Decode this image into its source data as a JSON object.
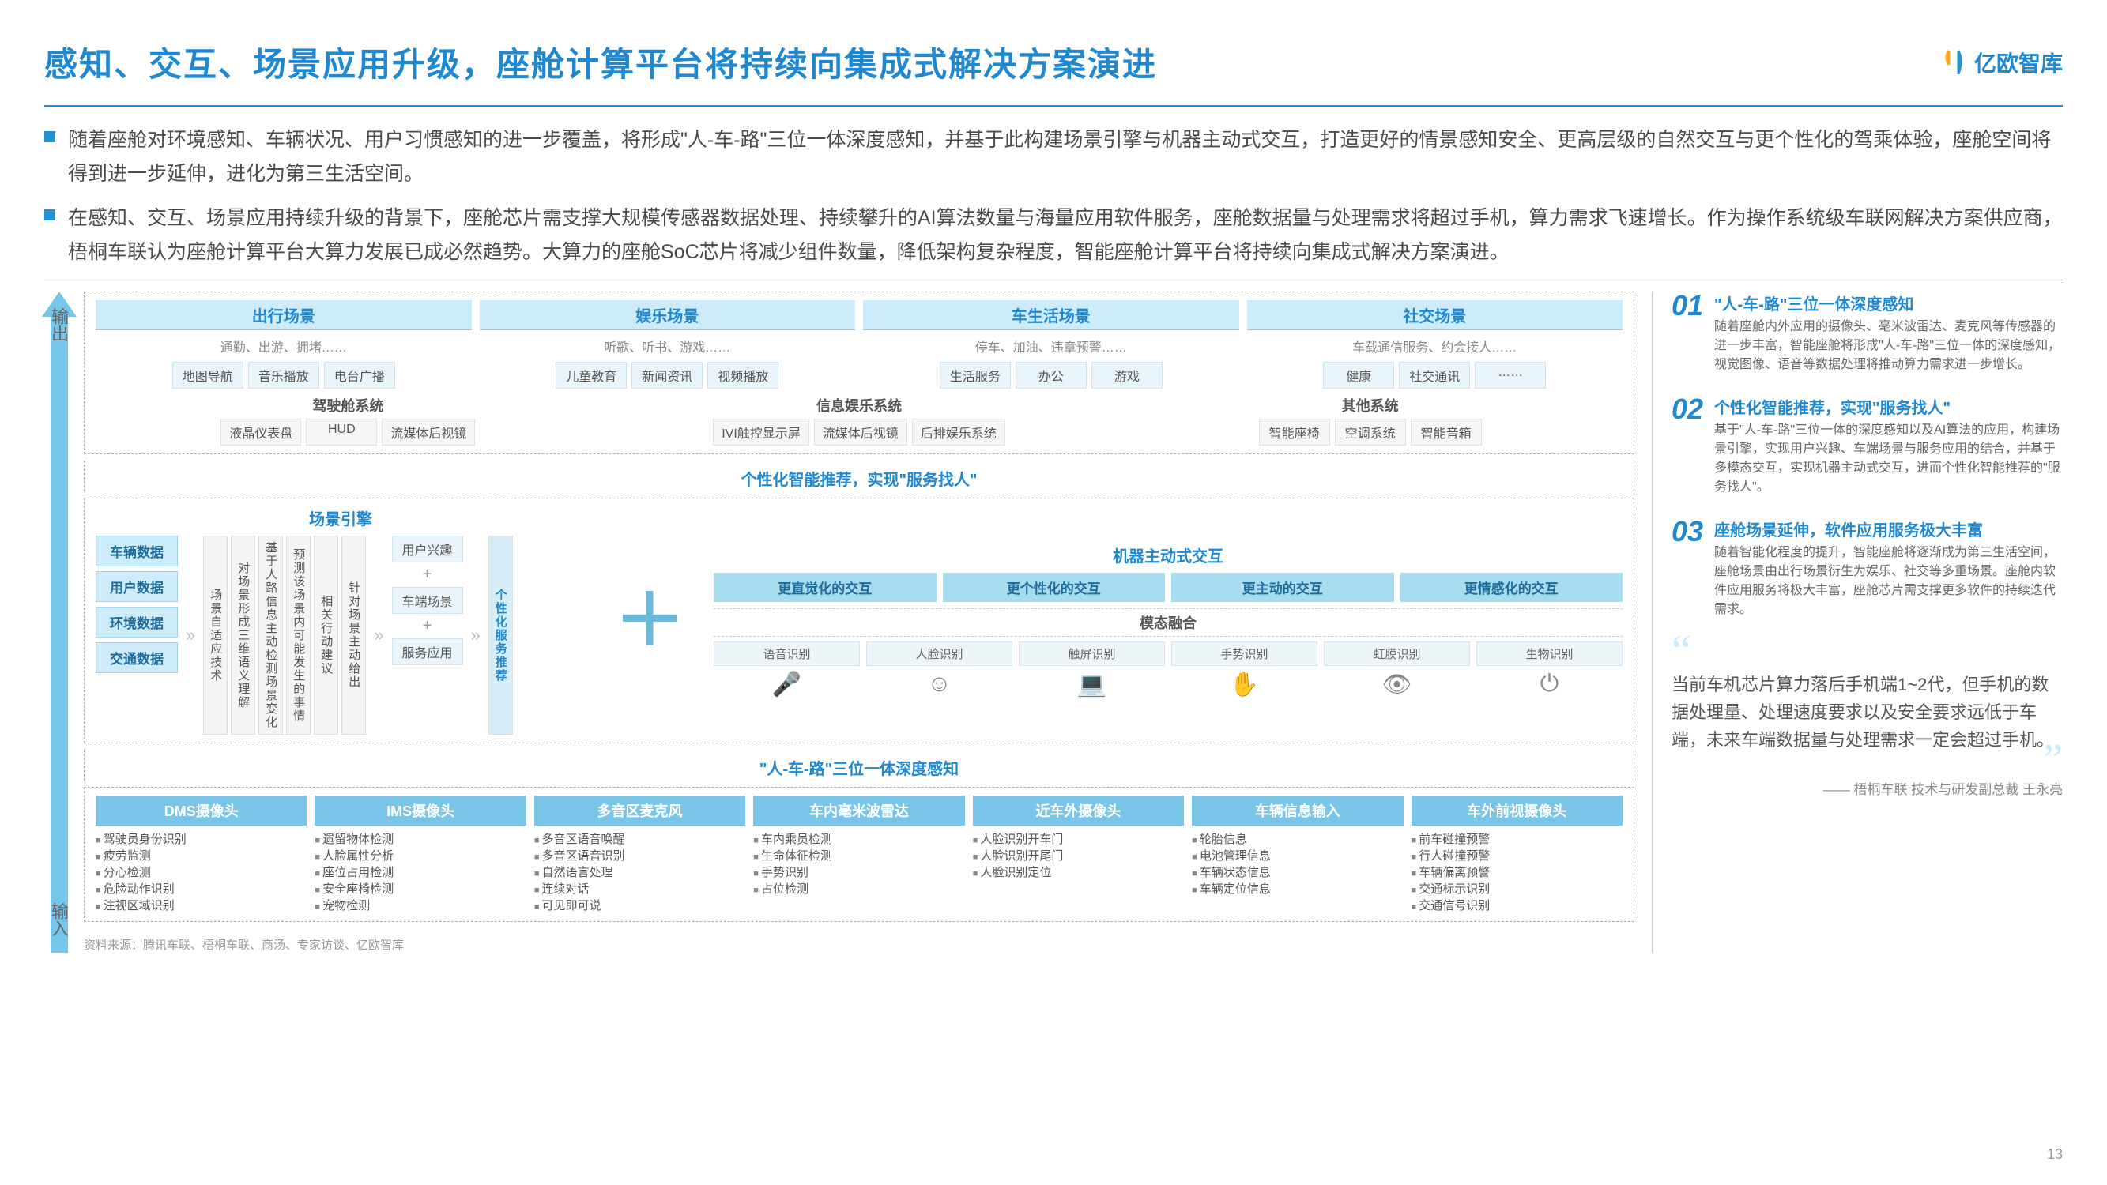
{
  "header": {
    "title": "感知、交互、场景应用升级，座舱计算平台将持续向集成式解决方案演进",
    "logo_text": "亿欧智库"
  },
  "bullets": [
    "随着座舱对环境感知、车辆状况、用户习惯感知的进一步覆盖，将形成\"人-车-路\"三位一体深度感知，并基于此构建场景引擎与机器主动式交互，打造更好的情景感知安全、更高层级的自然交互与更个性化的驾乘体验，座舱空间将得到进一步延伸，进化为第三生活空间。",
    "在感知、交互、场景应用持续升级的背景下，座舱芯片需支撑大规模传感器数据处理、持续攀升的AI算法数量与海量应用软件服务，座舱数据量与处理需求将超过手机，算力需求飞速增长。作为操作系统级车联网解决方案供应商，梧桐车联认为座舱计算平台大算力发展已成必然趋势。大算力的座舱SoC芯片将减少组件数量，降低架构复杂程度，智能座舱计算平台将持续向集成式解决方案演进。"
  ],
  "arrow": {
    "top_label": "输出",
    "bottom_label": "输入"
  },
  "tier1": {
    "groups": [
      {
        "title": "出行场景",
        "sub": "通勤、出游、拥堵……",
        "chips": [
          "地图导航",
          "音乐播放",
          "电台广播"
        ]
      },
      {
        "title": "娱乐场景",
        "sub": "听歌、听书、游戏……",
        "chips": [
          "儿童教育",
          "新闻资讯",
          "视频播放"
        ]
      },
      {
        "title": "车生活场景",
        "sub": "停车、加油、违章预警……",
        "chips": [
          "生活服务",
          "办公",
          "游戏"
        ]
      },
      {
        "title": "社交场景",
        "sub": "车载通信服务、约会接人……",
        "chips": [
          "健康",
          "社交通讯",
          "……"
        ]
      }
    ],
    "systems": [
      {
        "title": "驾驶舱系统",
        "chips": [
          "液晶仪表盘",
          "HUD",
          "流媒体后视镜"
        ]
      },
      {
        "title": "信息娱乐系统",
        "chips": [
          "IVI触控显示屏",
          "流媒体后视镜",
          "后排娱乐系统"
        ]
      },
      {
        "title": "其他系统",
        "chips": [
          "智能座椅",
          "空调系统",
          "智能音箱"
        ]
      }
    ]
  },
  "band_mid_top": "个性化智能推荐，实现\"服务找人\"",
  "mid": {
    "engine_title": "场景引擎",
    "data_chips": [
      "车辆数据",
      "用户数据",
      "环境数据",
      "交通数据"
    ],
    "vchips": [
      "场景自适应技术",
      "对场景形成三维语义理解",
      "基于人路信息主动检测场景变化",
      "预测该场景内可能发生的事情",
      "相关行动建议",
      "针对场景主动给出"
    ],
    "interest": [
      "用户兴趣",
      "车端场景",
      "服务应用"
    ],
    "interest_plus": "+",
    "rec_vchip": "个性化服务推荐",
    "robot_title": "机器主动式交互",
    "interacts": [
      "更直觉化的交互",
      "更个性化的交互",
      "更主动的交互",
      "更情感化的交互"
    ],
    "modal_label": "模态融合",
    "modals": [
      "语音识别",
      "人脸识别",
      "触屏识别",
      "手势识别",
      "虹膜识别",
      "生物识别"
    ],
    "icons": [
      "🎤",
      "☺",
      "💻",
      "✋",
      "👁",
      "⏻"
    ]
  },
  "band_mid_bottom": "\"人-车-路\"三位一体深度感知",
  "inputs": [
    {
      "title": "DMS摄像头",
      "items": [
        "驾驶员身份识别",
        "疲劳监测",
        "分心检测",
        "危险动作识别",
        "注视区域识别"
      ]
    },
    {
      "title": "IMS摄像头",
      "items": [
        "遗留物体检测",
        "人脸属性分析",
        "座位占用检测",
        "安全座椅检测",
        "宠物检测"
      ]
    },
    {
      "title": "多音区麦克风",
      "items": [
        "多音区语音唤醒",
        "多音区语音识别",
        "自然语言处理",
        "连续对话",
        "可见即可说"
      ]
    },
    {
      "title": "车内毫米波雷达",
      "items": [
        "车内乘员检测",
        "生命体征检测",
        "手势识别",
        "占位检测"
      ]
    },
    {
      "title": "近车外摄像头",
      "items": [
        "人脸识别开车门",
        "人脸识别开尾门",
        "人脸识别定位"
      ]
    },
    {
      "title": "车辆信息输入",
      "items": [
        "轮胎信息",
        "电池管理信息",
        "车辆状态信息",
        "车辆定位信息"
      ]
    },
    {
      "title": "车外前视摄像头",
      "items": [
        "前车碰撞预警",
        "行人碰撞预警",
        "车辆偏离预警",
        "交通标示识别",
        "交通信号识别"
      ]
    }
  ],
  "source": "资料来源：腾讯车联、梧桐车联、商汤、专家访谈、亿欧智库",
  "page": "13",
  "right_points": [
    {
      "num": "01",
      "title": "\"人-车-路\"三位一体深度感知",
      "body": "随着座舱内外应用的摄像头、毫米波雷达、麦克风等传感器的进一步丰富，智能座舱将形成\"人-车-路\"三位一体的深度感知，视觉图像、语音等数据处理将推动算力需求进一步增长。"
    },
    {
      "num": "02",
      "title": "个性化智能推荐，实现\"服务找人\"",
      "body": "基于\"人-车-路\"三位一体的深度感知以及AI算法的应用，构建场景引擎，实现用户兴趣、车端场景与服务应用的结合，并基于多模态交互，实现机器主动式交互，进而个性化智能推荐的\"服务找人\"。"
    },
    {
      "num": "03",
      "title": "座舱场景延伸，软件应用服务极大丰富",
      "body": "随着智能化程度的提升，智能座舱将逐渐成为第三生活空间，座舱场景由出行场景衍生为娱乐、社交等多重场景。座舱内软件应用服务将极大丰富，座舱芯片需支撑更多软件的持续迭代需求。"
    }
  ],
  "quote": {
    "text": "当前车机芯片算力落后手机端1~2代，但手机的数据处理量、处理速度要求以及安全要求远低于车端，未来车端数据量与处理需求一定会超过手机。",
    "source": "—— 梧桐车联 技术与研发副总裁 王永亮"
  }
}
